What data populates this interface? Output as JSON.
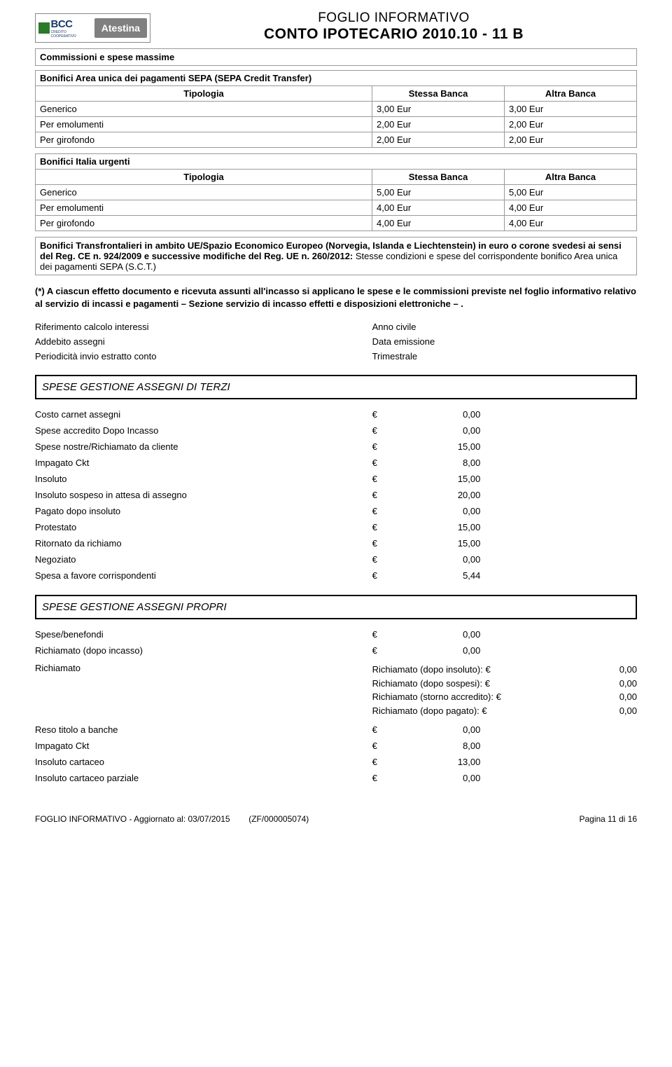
{
  "header": {
    "logo_bcc": "BCC",
    "logo_sub": "CREDITO COOPERATIVO",
    "logo_atestina": "Atestina",
    "title_line1": "FOGLIO INFORMATIVO",
    "title_line2": "CONTO IPOTECARIO 2010.10 - 11 B"
  },
  "section_commissioni": "Commissioni e spese massime",
  "table_sepa": {
    "title": "Bonifici Area unica dei pagamenti SEPA (SEPA Credit Transfer)",
    "headers": [
      "Tipologia",
      "Stessa Banca",
      "Altra Banca"
    ],
    "rows": [
      [
        "Generico",
        "3,00 Eur",
        "3,00 Eur"
      ],
      [
        "Per emolumenti",
        "2,00 Eur",
        "2,00 Eur"
      ],
      [
        "Per girofondo",
        "2,00 Eur",
        "2,00 Eur"
      ]
    ]
  },
  "table_italia": {
    "title": "Bonifici Italia urgenti",
    "headers": [
      "Tipologia",
      "Stessa Banca",
      "Altra Banca"
    ],
    "rows": [
      [
        "Generico",
        "5,00 Eur",
        "5,00 Eur"
      ],
      [
        "Per emolumenti",
        "4,00 Eur",
        "4,00 Eur"
      ],
      [
        "Per girofondo",
        "4,00 Eur",
        "4,00 Eur"
      ]
    ]
  },
  "note_transfrontalieri": {
    "bold": "Bonifici Transfrontalieri in ambito UE/Spazio Economico Europeo (Norvegia, Islanda e Liechtenstein) in euro o corone svedesi ai sensi del Reg. CE n. 924/2009 e successive modifiche del Reg. UE n. 260/2012:",
    "rest": " Stesse condizioni e spese del corrispondente bonifico Area unica dei pagamenti SEPA (S.C.T.)"
  },
  "asterisk_para": "(*) A ciascun effetto documento e ricevuta assunti all'incasso si applicano le spese e le commissioni previste nel foglio informativo relativo al servizio di incassi e pagamenti – Sezione  servizio di incasso effetti e disposizioni elettroniche – .",
  "kv": [
    {
      "k": "Riferimento calcolo interessi",
      "v": "Anno civile"
    },
    {
      "k": "Addebito assegni",
      "v": "Data emissione"
    },
    {
      "k": "Periodicità invio estratto conto",
      "v": "Trimestrale"
    }
  ],
  "section_terzi": {
    "heading": "SPESE GESTIONE ASSEGNI DI TERZI",
    "rows": [
      {
        "label": "Costo carnet assegni",
        "cur": "€",
        "amt": "0,00"
      },
      {
        "label": "Spese accredito Dopo Incasso",
        "cur": "€",
        "amt": "0,00"
      },
      {
        "label": "Spese nostre/Richiamato da cliente",
        "cur": "€",
        "amt": "15,00"
      },
      {
        "label": "Impagato Ckt",
        "cur": "€",
        "amt": "8,00"
      },
      {
        "label": "Insoluto",
        "cur": "€",
        "amt": "15,00"
      },
      {
        "label": "Insoluto sospeso in attesa di assegno",
        "cur": "€",
        "amt": "20,00"
      },
      {
        "label": "Pagato dopo insoluto",
        "cur": "€",
        "amt": "0,00"
      },
      {
        "label": "Protestato",
        "cur": "€",
        "amt": "15,00"
      },
      {
        "label": "Ritornato da richiamo",
        "cur": "€",
        "amt": "15,00"
      },
      {
        "label": "Negoziato",
        "cur": "€",
        "amt": "0,00"
      },
      {
        "label": "Spesa a favore corrispondenti",
        "cur": "€",
        "amt": "5,44"
      }
    ]
  },
  "section_propri": {
    "heading": "SPESE GESTIONE ASSEGNI PROPRI",
    "rows_before": [
      {
        "label": "Spese/benefondi",
        "cur": "€",
        "amt": "0,00"
      },
      {
        "label": "Richiamato (dopo incasso)",
        "cur": "€",
        "amt": "0,00"
      }
    ],
    "richiamato": {
      "label": "Richiamato",
      "lines": [
        {
          "l": "Richiamato (dopo insoluto): €",
          "a": "0,00"
        },
        {
          "l": "Richiamato (dopo sospesi): €",
          "a": "0,00"
        },
        {
          "l": "Richiamato (storno accredito): €",
          "a": "0,00"
        },
        {
          "l": "Richiamato (dopo pagato): €",
          "a": "0,00"
        }
      ]
    },
    "rows_after": [
      {
        "label": "Reso titolo a banche",
        "cur": "€",
        "amt": "0,00"
      },
      {
        "label": "Impagato Ckt",
        "cur": "€",
        "amt": "8,00"
      },
      {
        "label": "Insoluto cartaceo",
        "cur": "€",
        "amt": "13,00"
      },
      {
        "label": "Insoluto cartaceo parziale",
        "cur": "€",
        "amt": "0,00"
      }
    ]
  },
  "footer": {
    "left1": "FOGLIO INFORMATIVO - Aggiornato al: 03/07/2015",
    "left2": "(ZF/000005074)",
    "right": "Pagina 11 di 16"
  }
}
